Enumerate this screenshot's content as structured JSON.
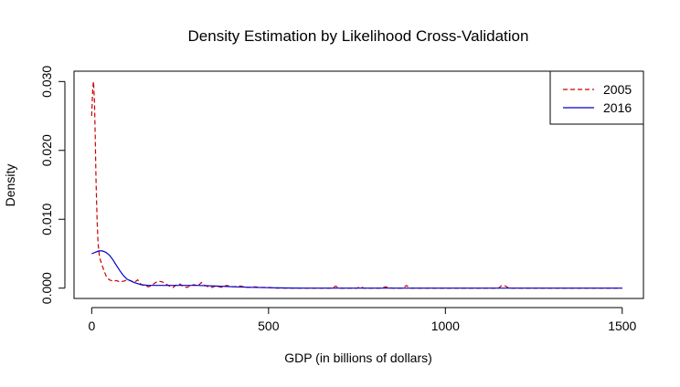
{
  "chart_data": {
    "type": "line",
    "title": "Density Estimation by Likelihood Cross-Validation",
    "xlabel": "GDP (in billions of dollars)",
    "ylabel": "Density",
    "xlim": [
      -50,
      1560
    ],
    "ylim": [
      -0.0015,
      0.0315
    ],
    "x_ticks": [
      0,
      500,
      1000,
      1500
    ],
    "x_tick_labels": [
      "0",
      "500",
      "1000",
      "1500"
    ],
    "y_ticks": [
      0.0,
      0.01,
      0.02,
      0.03
    ],
    "y_tick_labels": [
      "0.000",
      "0.010",
      "0.020",
      "0.030"
    ],
    "legend_position": "top-right",
    "grid": false,
    "series": [
      {
        "name": "2005",
        "color": "#cc0000",
        "dash": "dashed",
        "x": [
          0,
          3,
          5,
          8,
          10,
          12,
          15,
          18,
          22,
          28,
          35,
          42,
          50,
          60,
          70,
          80,
          90,
          100,
          110,
          120,
          130,
          140,
          150,
          160,
          170,
          180,
          190,
          200,
          210,
          220,
          230,
          240,
          250,
          260,
          270,
          280,
          290,
          300,
          310,
          320,
          330,
          340,
          350,
          360,
          370,
          380,
          390,
          400,
          420,
          440,
          460,
          480,
          500,
          520,
          540,
          560,
          600,
          650,
          680,
          690,
          700,
          720,
          750,
          760,
          770,
          800,
          820,
          830,
          850,
          880,
          890,
          900,
          910,
          940,
          1000,
          1100,
          1150,
          1160,
          1170,
          1180,
          1200,
          1300,
          1400,
          1500
        ],
        "y": [
          0.025,
          0.029,
          0.03,
          0.027,
          0.022,
          0.016,
          0.01,
          0.0065,
          0.0045,
          0.0035,
          0.0025,
          0.0016,
          0.0012,
          0.001,
          0.0011,
          0.0009,
          0.001,
          0.0012,
          0.0011,
          0.0008,
          0.0012,
          0.0005,
          0.0004,
          0.0002,
          0.0004,
          0.0008,
          0.001,
          0.0009,
          0.0006,
          0.0003,
          0.0001,
          0.0005,
          0.0006,
          0.0002,
          0.0001,
          0.0004,
          0.0005,
          0.0003,
          0.0008,
          0.0004,
          0.0002,
          0.0001,
          0.0003,
          0.0002,
          0.0001,
          0.0004,
          0.0003,
          0.0002,
          0.0003,
          0.0001,
          0.0002,
          0.0001,
          0.0001,
          0.0,
          0.0,
          0.0,
          0.0,
          0.0,
          0.0,
          0.0003,
          0.0,
          0.0,
          0.0,
          0.0002,
          0.0,
          0.0,
          0.0,
          0.0002,
          0.0,
          0.0,
          0.0004,
          0.0,
          0.0,
          0.0,
          0.0,
          0.0,
          0.0,
          0.0004,
          0.0003,
          0.0,
          0.0,
          0.0,
          0.0,
          0.0
        ]
      },
      {
        "name": "2016",
        "color": "#0000cc",
        "dash": "solid",
        "x": [
          0,
          10,
          20,
          30,
          40,
          50,
          60,
          70,
          80,
          90,
          100,
          120,
          140,
          160,
          180,
          200,
          250,
          300,
          350,
          400,
          450,
          500,
          550,
          600,
          700,
          800,
          900,
          1000,
          1100,
          1200,
          1300,
          1400,
          1500
        ],
        "y": [
          0.005,
          0.0052,
          0.0054,
          0.0054,
          0.0052,
          0.0048,
          0.0041,
          0.0033,
          0.0025,
          0.0018,
          0.0013,
          0.0008,
          0.0005,
          0.0004,
          0.0004,
          0.0004,
          0.0004,
          0.0004,
          0.0003,
          0.0002,
          0.00012,
          6e-05,
          2e-05,
          0.0,
          0.0,
          0.0,
          0.0,
          0.0,
          0.0,
          0.0,
          0.0,
          0.0,
          0.0
        ]
      }
    ]
  }
}
